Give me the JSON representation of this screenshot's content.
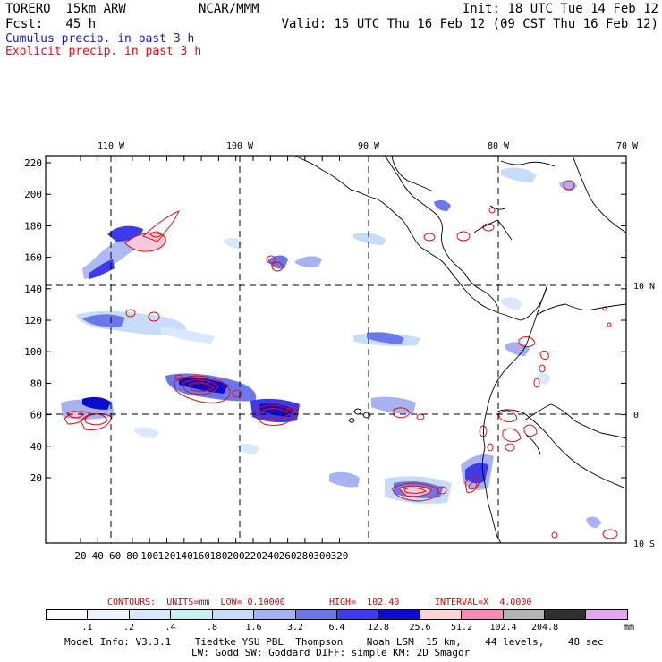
{
  "header": {
    "model": "TORERO  15km ARW",
    "center": "NCAR/MMM",
    "init": "Init: 18 UTC Tue 14 Feb 12",
    "fcst": "Fcst:   45 h",
    "valid": "Valid: 15 UTC Thu 16 Feb 12 (09 CST Thu 16 Feb 12)",
    "cumulus": "Cumulus precip. in past 3 h",
    "explicit": "Explicit precip. in past 3 h"
  },
  "colors": {
    "cumulus": "#1a1ab8",
    "explicit": "#e01010",
    "contour_info": "#cc0000"
  },
  "map": {
    "top_labels": [
      "110 W",
      "100 W",
      "90 W",
      "80 W",
      "70 W"
    ],
    "right_labels": [
      "10 N",
      "0",
      "10 S"
    ],
    "y_ticks": [
      "220",
      "200",
      "180",
      "160",
      "140",
      "120",
      "100",
      "80",
      "60",
      "40",
      "20"
    ],
    "x_ticks": [
      "20",
      "40",
      "60",
      "80",
      "100",
      "120",
      "140",
      "160",
      "180",
      "200",
      "220",
      "240",
      "260",
      "280",
      "300",
      "320"
    ]
  },
  "contours_info": {
    "label": "CONTOURS:  UNITS=mm  LOW= 0.10000",
    "high": "HIGH=  102.40",
    "interval": "INTERVAL=X  4.0000"
  },
  "colorbar": {
    "swatches": [
      "#ffffff",
      "#eef4ff",
      "#d7e8ff",
      "#c8f0f0",
      "#c6dcf8",
      "#a6b2f2",
      "#6a78ec",
      "#3c3cea",
      "#0c0ccc",
      "#fcd4d4",
      "#f88cb4",
      "#b4b4b4",
      "#303030",
      "#e0a8f4"
    ],
    "labels": [
      ".1",
      ".2",
      ".4",
      ".8",
      "1.6",
      "3.2",
      "6.4",
      "12.8",
      "25.6",
      "51.2",
      "102.4",
      "204.8"
    ],
    "unit": "mm"
  },
  "footer": {
    "line1": "Model Info: V3.3.1    Tiedtke YSU PBL  Thompson    Noah LSM  15 km,    44 levels,    48 sec",
    "line2": "LW: Godd SW: Goddard DIFF: simple KM: 2D Smagor"
  }
}
